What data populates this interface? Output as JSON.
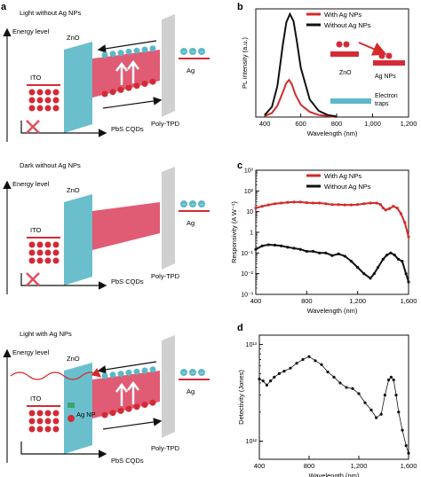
{
  "panel_a": {
    "letter": "a",
    "rows": [
      {
        "title": "Light without Ag NPs",
        "energy_level": "Energy level",
        "labels": {
          "ito": "ITO",
          "zno": "ZnO",
          "ag": "Ag",
          "poly": "Poly-TPD",
          "pbs": "PbS CQDs"
        }
      },
      {
        "title": "Dark without Ag NPs",
        "energy_level": "Energy level",
        "labels": {
          "ito": "ITO",
          "zno": "ZnO",
          "ag": "Ag",
          "poly": "Poly-TPD",
          "pbs": "PbS CQDs"
        }
      },
      {
        "title": "Light with Ag NPs",
        "energy_level": "Energy level",
        "labels": {
          "ito": "ITO",
          "zno": "ZnO",
          "ag": "Ag",
          "poly": "Poly-TPD",
          "pbs": "PbS CQDs",
          "agnp": "Ag NP"
        }
      }
    ],
    "colors": {
      "zno": "#5bb8c8",
      "pbs": "#e05b74",
      "ito": "#d42a36",
      "poly": "#d0d0d0",
      "electron": "#5bb8c8",
      "hole": "#d42a36",
      "cross": "#e0505a"
    }
  },
  "chart_data": [
    {
      "panel": "b",
      "type": "line",
      "xlabel": "Wavelength (nm)",
      "ylabel": "PL intensity (a.u.)",
      "xlim": [
        350,
        1200
      ],
      "xticks": [
        "400",
        "600",
        "800",
        "1,000",
        "1,200"
      ],
      "xtick_values": [
        400,
        600,
        800,
        1000,
        1200
      ],
      "ylim": [
        0,
        1.05
      ],
      "legend": "top-right",
      "series": [
        {
          "name": "With Ag NPs",
          "color": "#d42a2a",
          "x": [
            400,
            440,
            470,
            500,
            520,
            535,
            550,
            570,
            600,
            650,
            700,
            750,
            800
          ],
          "y": [
            0.01,
            0.04,
            0.11,
            0.24,
            0.33,
            0.36,
            0.32,
            0.22,
            0.12,
            0.05,
            0.02,
            0.01,
            0.0
          ]
        },
        {
          "name": "Without Ag NPs",
          "color": "#111111",
          "x": [
            400,
            440,
            470,
            500,
            520,
            540,
            560,
            580,
            600,
            650,
            700,
            750,
            800
          ],
          "y": [
            0.02,
            0.1,
            0.3,
            0.7,
            0.92,
            1.0,
            0.93,
            0.72,
            0.48,
            0.17,
            0.06,
            0.02,
            0.005
          ]
        }
      ],
      "inset": {
        "zno": "ZnO",
        "ag": "Ag NPs",
        "traps": "Electron traps",
        "minus": "−"
      }
    },
    {
      "panel": "c",
      "type": "line",
      "xlabel": "Wavelength (nm)",
      "ylabel": "Responsivity (A W⁻¹)",
      "scale": "log",
      "xlim": [
        400,
        1600
      ],
      "xticks": [
        "400",
        "800",
        "1,200",
        "1,600"
      ],
      "xtick_values": [
        400,
        800,
        1200,
        1600
      ],
      "ylim": [
        0.001,
        1000
      ],
      "yticks": [
        "10⁻³",
        "10⁻²",
        "10⁻¹",
        "1",
        "10",
        "10²",
        "10³"
      ],
      "ytick_values": [
        0.001,
        0.01,
        0.1,
        1,
        10,
        100,
        1000
      ],
      "legend": "top-right",
      "series": [
        {
          "name": "With Ag NPs",
          "color": "#d42a2a",
          "x": [
            400,
            450,
            500,
            550,
            600,
            650,
            700,
            750,
            800,
            850,
            900,
            950,
            1000,
            1050,
            1100,
            1150,
            1200,
            1250,
            1300,
            1350,
            1380,
            1400,
            1420,
            1450,
            1480,
            1510,
            1540,
            1570,
            1600
          ],
          "y": [
            15,
            18,
            21,
            24,
            26,
            28,
            29,
            29,
            27,
            26,
            26,
            24,
            22,
            22,
            21,
            21,
            22,
            24,
            26,
            26,
            22,
            15,
            12,
            14,
            18,
            15,
            8,
            3,
            0.6
          ]
        },
        {
          "name": "Without Ag NPs",
          "color": "#111111",
          "x": [
            400,
            450,
            500,
            550,
            600,
            650,
            700,
            750,
            800,
            850,
            900,
            950,
            1000,
            1050,
            1100,
            1150,
            1200,
            1250,
            1300,
            1330,
            1360,
            1400,
            1430,
            1460,
            1490,
            1520,
            1550,
            1580,
            1600
          ],
          "y": [
            0.15,
            0.22,
            0.25,
            0.24,
            0.22,
            0.19,
            0.17,
            0.15,
            0.12,
            0.12,
            0.1,
            0.1,
            0.075,
            0.09,
            0.07,
            0.04,
            0.02,
            0.01,
            0.006,
            0.01,
            0.02,
            0.05,
            0.08,
            0.1,
            0.08,
            0.05,
            0.04,
            0.01,
            0.004
          ]
        }
      ]
    },
    {
      "panel": "d",
      "type": "line",
      "xlabel": "Wavelength (nm)",
      "ylabel": "Detectivity (Jones)",
      "scale": "log",
      "xlim": [
        400,
        1600
      ],
      "xticks": [
        "400",
        "800",
        "1,200",
        "1,600"
      ],
      "xtick_values": [
        400,
        800,
        1200,
        1600
      ],
      "ylim": [
        650000000000.0,
        12500000000000.0
      ],
      "yticks": [
        "10¹²",
        "10¹³"
      ],
      "ytick_values": [
        1000000000000.0,
        10000000000000.0
      ],
      "series": [
        {
          "name": "",
          "color": "#111111",
          "x": [
            400,
            430,
            460,
            490,
            520,
            560,
            600,
            650,
            700,
            750,
            800,
            850,
            900,
            950,
            1000,
            1050,
            1100,
            1150,
            1200,
            1250,
            1300,
            1340,
            1380,
            1410,
            1440,
            1460,
            1480,
            1500,
            1520,
            1550,
            1580,
            1600
          ],
          "y": [
            4400000000000.0,
            4200000000000.0,
            3800000000000.0,
            4200000000000.0,
            4600000000000.0,
            5000000000000.0,
            5300000000000.0,
            5700000000000.0,
            6400000000000.0,
            7000000000000.0,
            7500000000000.0,
            6800000000000.0,
            6200000000000.0,
            5200000000000.0,
            4600000000000.0,
            4000000000000.0,
            3600000000000.0,
            3500000000000.0,
            3100000000000.0,
            2500000000000.0,
            2100000000000.0,
            1750000000000.0,
            1900000000000.0,
            3000000000000.0,
            4300000000000.0,
            4600000000000.0,
            4300000000000.0,
            3000000000000.0,
            2000000000000.0,
            1300000000000.0,
            900000000000.0,
            750000000000.0
          ]
        }
      ]
    }
  ]
}
